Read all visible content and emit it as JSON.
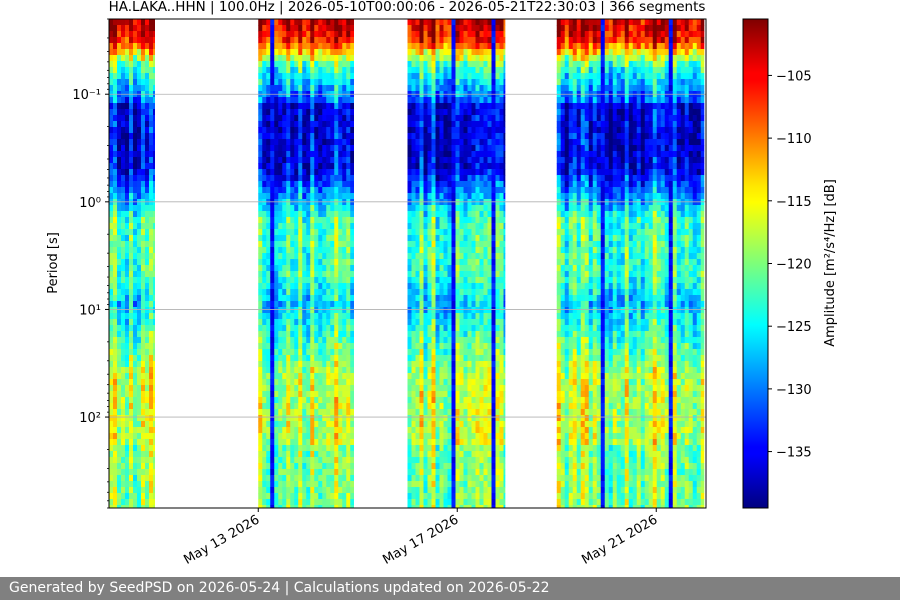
{
  "chart_data": {
    "type": "heatmap",
    "title": "HA.LAKA..HHN | 100.0Hz | 2026-05-10T00:00:06 - 2026-05-21T22:30:03 | 366 segments",
    "ylabel": "Period [s]",
    "y_scale": "log",
    "y_inverted": true,
    "ylim": [
      0.02,
      700
    ],
    "y_ticks": [
      {
        "value": 0.1,
        "label": "10⁻¹"
      },
      {
        "value": 1,
        "label": "10⁰"
      },
      {
        "value": 10,
        "label": "10¹"
      },
      {
        "value": 100,
        "label": "10²"
      }
    ],
    "x_ticks": [
      {
        "date": "2026-05-13",
        "label": "May 13 2026"
      },
      {
        "date": "2026-05-17",
        "label": "May 17 2026"
      },
      {
        "date": "2026-05-21",
        "label": "May 21 2026"
      }
    ],
    "xlim": [
      "2026-05-10",
      "2026-05-22"
    ],
    "data_blocks": [
      {
        "start": "2026-05-10",
        "end": "2026-05-10T22:00"
      },
      {
        "start": "2026-05-13",
        "end": "2026-05-14T22:00"
      },
      {
        "start": "2026-05-16",
        "end": "2026-05-17T23:00"
      },
      {
        "start": "2026-05-19",
        "end": "2026-05-21T23:00"
      }
    ],
    "grid": "horizontal at major y ticks",
    "colormap": "jet",
    "colorbar": {
      "label": "Amplitude [m²/s⁴/Hz] [dB]",
      "range": [
        -139.5,
        -100.5
      ],
      "ticks": [
        -105,
        -110,
        -115,
        -120,
        -125,
        -130,
        -135
      ],
      "tick_labels": [
        "−105",
        "−110",
        "−115",
        "−120",
        "−125",
        "−130",
        "−135"
      ]
    }
  },
  "footer": {
    "text": "Generated by SeedPSD on 2026-05-24 | Calculations updated on 2026-05-22"
  }
}
